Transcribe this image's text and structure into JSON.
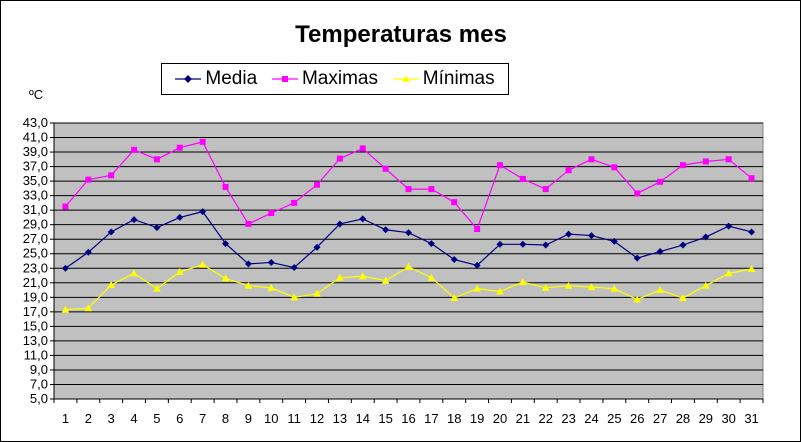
{
  "chart_data": {
    "type": "line",
    "title": "Temperaturas mes",
    "ylabel": "ºC",
    "xlabel": "",
    "ylim": [
      5,
      43
    ],
    "ytick_step": 2,
    "yticks": [
      "5,0",
      "7,0",
      "9,0",
      "11,0",
      "13,0",
      "15,0",
      "17,0",
      "19,0",
      "21,0",
      "23,0",
      "25,0",
      "27,0",
      "29,0",
      "31,0",
      "33,0",
      "35,0",
      "37,0",
      "39,0",
      "41,0",
      "43,0"
    ],
    "categories": [
      "1",
      "2",
      "3",
      "4",
      "5",
      "6",
      "7",
      "8",
      "9",
      "10",
      "11",
      "12",
      "13",
      "14",
      "15",
      "16",
      "17",
      "18",
      "19",
      "20",
      "21",
      "22",
      "23",
      "24",
      "25",
      "26",
      "27",
      "28",
      "29",
      "30",
      "31"
    ],
    "grid": true,
    "legend_position": "top-center",
    "plot_background": "#c0c0c0",
    "series": [
      {
        "name": "Media",
        "color": "#000080",
        "marker": "diamond",
        "values": [
          23.0,
          25.2,
          28.0,
          29.7,
          28.6,
          30.0,
          30.8,
          26.4,
          23.6,
          23.8,
          23.1,
          25.9,
          29.1,
          29.8,
          28.3,
          27.9,
          26.4,
          24.2,
          23.4,
          26.3,
          26.3,
          26.2,
          27.7,
          27.5,
          26.7,
          24.4,
          25.3,
          26.2,
          27.3,
          28.8,
          28.0
        ]
      },
      {
        "name": "Maximas",
        "color": "#ff00ff",
        "marker": "square",
        "values": [
          31.5,
          35.2,
          35.8,
          39.3,
          38.0,
          39.6,
          40.4,
          34.2,
          29.1,
          30.6,
          32.0,
          34.5,
          38.1,
          39.5,
          36.7,
          33.9,
          33.9,
          32.1,
          28.4,
          37.2,
          35.3,
          33.9,
          36.5,
          38.0,
          36.9,
          33.3,
          34.9,
          37.2,
          37.7,
          38.0,
          35.4
        ]
      },
      {
        "name": "Mínimas",
        "color": "#ffff00",
        "marker": "triangle",
        "values": [
          17.3,
          17.5,
          20.7,
          22.3,
          20.2,
          22.5,
          23.5,
          21.6,
          20.6,
          20.3,
          19.0,
          19.5,
          21.7,
          21.9,
          21.3,
          23.2,
          21.7,
          18.9,
          20.2,
          19.8,
          21.1,
          20.3,
          20.6,
          20.4,
          20.2,
          18.7,
          20.0,
          18.9,
          20.6,
          22.3,
          22.9
        ]
      }
    ]
  }
}
